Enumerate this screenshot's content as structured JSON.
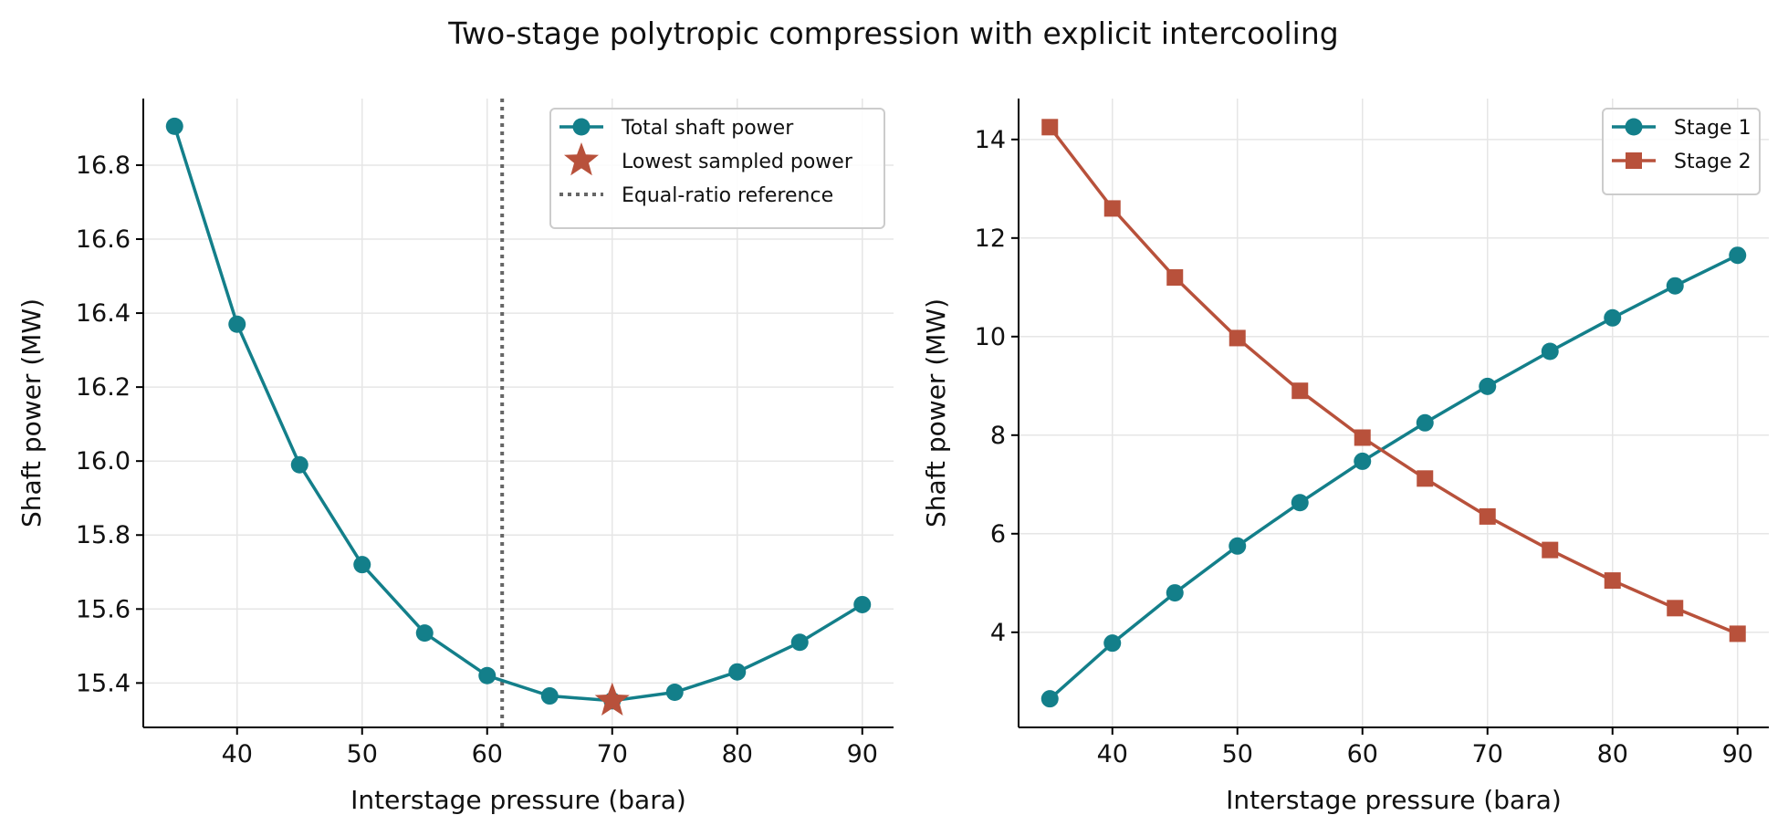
{
  "figure": {
    "title": "Two-stage polytropic compression with explicit intercooling",
    "colors": {
      "teal": "#137f8a",
      "rust": "#b8513b",
      "ref": "#666666",
      "grid": "#e6e6e6"
    }
  },
  "chart_data": [
    {
      "type": "line",
      "xlabel": "Interstage pressure (bara)",
      "ylabel": "Shaft power (MW)",
      "xlim": [
        32.5,
        92.5
      ],
      "ylim": [
        15.28,
        16.98
      ],
      "xticks": [
        40,
        50,
        60,
        70,
        80,
        90
      ],
      "yticks": [
        15.4,
        15.6,
        15.8,
        16.0,
        16.2,
        16.4,
        16.6,
        16.8
      ],
      "grid": true,
      "legend_position": "top-right",
      "x": [
        35,
        40,
        45,
        50,
        55,
        60,
        65,
        70,
        75,
        80,
        85,
        90
      ],
      "series": [
        {
          "name": "Total shaft power",
          "marker": "circle",
          "color": "#137f8a",
          "values": [
            16.905,
            16.37,
            15.99,
            15.72,
            15.535,
            15.42,
            15.365,
            15.352,
            15.375,
            15.43,
            15.51,
            15.612
          ]
        }
      ],
      "highlight_point": {
        "name": "Lowest sampled power",
        "x": 70,
        "y": 15.352,
        "marker": "star",
        "color": "#b8513b"
      },
      "reference_line": {
        "name": "Equal-ratio reference",
        "x": 61.2,
        "style": "dotted",
        "color": "#666666"
      }
    },
    {
      "type": "line",
      "xlabel": "Interstage pressure (bara)",
      "ylabel": "Shaft power (MW)",
      "xlim": [
        32.5,
        92.5
      ],
      "ylim": [
        2.07,
        14.83
      ],
      "xticks": [
        40,
        50,
        60,
        70,
        80,
        90
      ],
      "yticks": [
        4,
        6,
        8,
        10,
        12,
        14
      ],
      "grid": true,
      "legend_position": "top-right",
      "x": [
        35,
        40,
        45,
        50,
        55,
        60,
        65,
        70,
        75,
        80,
        85,
        90
      ],
      "series": [
        {
          "name": "Stage 1",
          "marker": "circle",
          "color": "#137f8a",
          "values": [
            2.65,
            3.78,
            4.8,
            5.75,
            6.63,
            7.47,
            8.25,
            8.99,
            9.7,
            10.38,
            11.03,
            11.65
          ]
        },
        {
          "name": "Stage 2",
          "marker": "square",
          "color": "#b8513b",
          "values": [
            14.25,
            12.6,
            11.2,
            9.97,
            8.9,
            7.95,
            7.12,
            6.35,
            5.67,
            5.05,
            4.49,
            3.97
          ]
        }
      ]
    }
  ]
}
